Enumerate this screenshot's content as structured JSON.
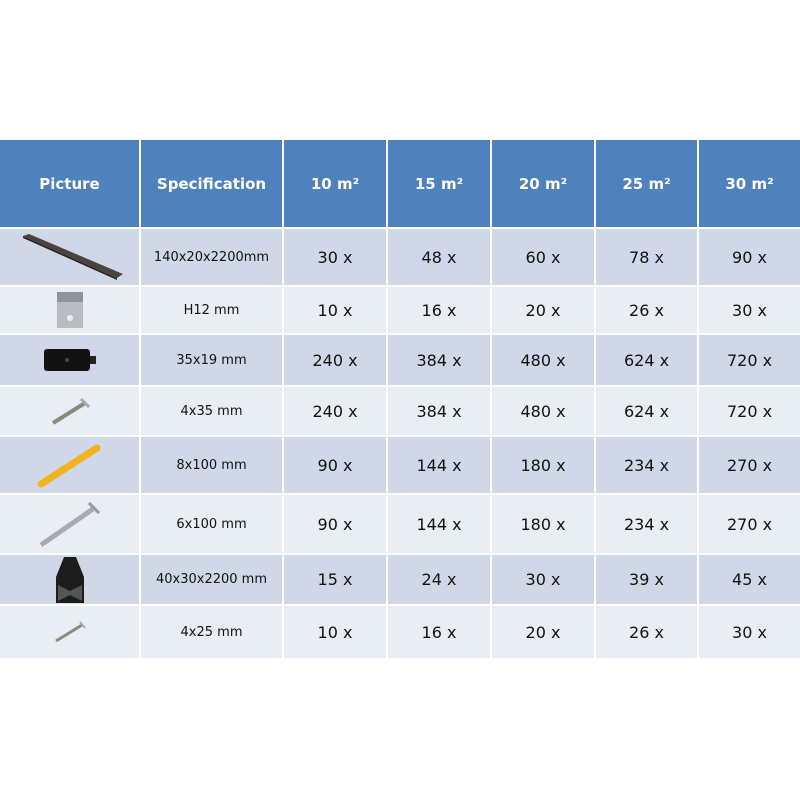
{
  "headers": {
    "picture": "Picture",
    "specification": "Specification",
    "areas": [
      "10 m²",
      "15 m²",
      "20 m²",
      "25 m²",
      "30 m²"
    ]
  },
  "colors": {
    "header": "#4f81bd",
    "row_dark": "#d0d8e8",
    "row_light": "#e9edf4"
  },
  "rows": [
    {
      "icon": "decking-board-icon",
      "spec": "140x20x2200mm",
      "qty": [
        "30 x",
        "48 x",
        "60 x",
        "78 x",
        "90 x"
      ]
    },
    {
      "icon": "metal-clip-icon",
      "spec": "H12 mm",
      "qty": [
        "10 x",
        "16 x",
        "20 x",
        "26 x",
        "30 x"
      ]
    },
    {
      "icon": "black-clip-icon",
      "spec": "35x19 mm",
      "qty": [
        "240 x",
        "384 x",
        "480 x",
        "624 x",
        "720 x"
      ]
    },
    {
      "icon": "screw-icon",
      "spec": "4x35 mm",
      "qty": [
        "240 x",
        "384 x",
        "480 x",
        "624 x",
        "720 x"
      ]
    },
    {
      "icon": "yellow-plug-icon",
      "spec": "8x100 mm",
      "qty": [
        "90 x",
        "144 x",
        "180 x",
        "234 x",
        "270 x"
      ]
    },
    {
      "icon": "long-screw-icon",
      "spec": "6x100 mm",
      "qty": [
        "90 x",
        "144 x",
        "180 x",
        "234 x",
        "270 x"
      ]
    },
    {
      "icon": "joist-profile-icon",
      "spec": "40x30x2200 mm",
      "qty": [
        "15 x",
        "24 x",
        "30 x",
        "39 x",
        "45 x"
      ]
    },
    {
      "icon": "small-screw-icon",
      "spec": "4x25 mm",
      "qty": [
        "10 x",
        "16 x",
        "20 x",
        "26 x",
        "30 x"
      ]
    }
  ]
}
